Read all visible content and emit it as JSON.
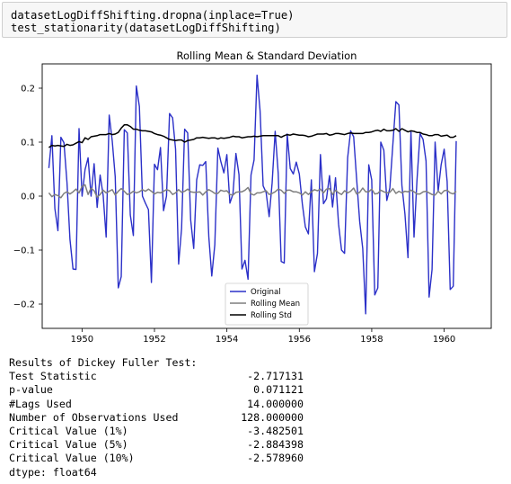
{
  "code_cell": {
    "lines": [
      "datasetLogDiffShifting.dropna(inplace=True)",
      "test_stationarity(datasetLogDiffShifting)"
    ]
  },
  "chart_data": {
    "type": "line",
    "title": "Rolling Mean & Standard Deviation",
    "xlabel": "",
    "ylabel": "",
    "xlim": [
      1948.9,
      1961.3
    ],
    "ylim": [
      -0.245,
      0.245
    ],
    "xticks": [
      1950,
      1952,
      1954,
      1956,
      1958,
      1960
    ],
    "yticks": [
      -0.2,
      -0.1,
      0.0,
      0.1,
      0.2
    ],
    "ytick_labels": [
      "−0.2",
      "−0.1",
      "0.0",
      "0.1",
      "0.2"
    ],
    "grid": false,
    "legend": "lower-center",
    "start": "1949-02",
    "frequency": "monthly",
    "series": [
      {
        "name": "Original",
        "color": "#2b30c8",
        "values": [
          0.052,
          0.112,
          -0.023,
          -0.064,
          0.109,
          0.099,
          0.025,
          -0.08,
          -0.135,
          -0.136,
          0.125,
          0.0,
          0.049,
          0.071,
          0.0,
          0.06,
          -0.021,
          0.039,
          0.001,
          -0.076,
          0.15,
          0.102,
          0.036,
          -0.17,
          -0.149,
          0.123,
          0.117,
          -0.035,
          -0.073,
          0.204,
          0.166,
          0.0,
          -0.013,
          -0.025,
          -0.16,
          0.059,
          0.049,
          0.09,
          -0.027,
          0.0,
          0.153,
          0.145,
          0.087,
          -0.126,
          -0.06,
          0.124,
          0.117,
          -0.044,
          -0.097,
          0.03,
          0.058,
          0.057,
          0.064,
          -0.075,
          -0.148,
          -0.09,
          0.089,
          0.064,
          0.043,
          0.077,
          -0.013,
          0.004,
          0.079,
          0.04,
          -0.135,
          -0.119,
          -0.154,
          0.039,
          0.067,
          0.224,
          0.158,
          0.019,
          0.007,
          -0.038,
          0.024,
          0.12,
          0.042,
          -0.121,
          -0.124,
          0.115,
          0.051,
          0.041,
          0.063,
          0.041,
          -0.015,
          -0.057,
          -0.07,
          0.03,
          -0.14,
          -0.106,
          0.077,
          -0.014,
          -0.005,
          0.038,
          -0.02,
          0.034,
          -0.052,
          -0.1,
          -0.106,
          0.071,
          0.121,
          0.11,
          0.032,
          -0.047,
          -0.097,
          -0.218,
          0.058,
          0.03,
          -0.183,
          -0.17,
          0.1,
          0.085,
          -0.008,
          0.015,
          0.097,
          0.175,
          0.169,
          0.02,
          -0.033,
          -0.114,
          0.12,
          -0.076,
          0.029,
          0.116,
          0.105,
          0.065,
          -0.187,
          -0.136,
          0.1,
          0.009,
          0.058,
          0.087,
          0.027,
          -0.173,
          -0.167,
          0.102
        ]
      },
      {
        "name": "Rolling Mean",
        "color": "#7f7f7f",
        "values": [
          0.006,
          -0.001,
          0.003,
          0.001,
          -0.003,
          0.005,
          0.008,
          0.004,
          0.008,
          0.013,
          0.006,
          0.018,
          0.021,
          0.003,
          0.015,
          0.01,
          -0.002,
          0.003,
          0.011,
          0.006,
          0.009,
          0.012,
          0.002,
          0.009,
          0.014,
          0.009,
          0.003,
          0.005,
          0.009,
          0.006,
          0.008,
          0.012,
          0.009,
          0.013,
          0.009,
          0.004,
          0.007,
          0.006,
          0.009,
          0.012,
          0.01,
          0.003,
          0.006,
          0.012,
          0.007,
          0.009,
          0.013,
          0.008,
          0.007,
          0.007,
          0.008,
          0.002,
          0.008,
          0.012,
          0.009,
          0.005,
          0.005,
          0.011,
          0.009,
          0.01,
          0.003,
          0.002,
          0.007,
          0.008,
          0.008,
          0.011,
          0.016,
          0.004,
          0.002,
          0.006,
          0.006,
          0.008,
          0.01,
          0.003,
          0.005,
          0.008,
          0.013,
          0.011,
          0.005,
          0.011,
          0.011,
          0.008,
          0.008,
          0.006,
          0.002,
          0.008,
          0.003,
          0.008,
          0.012,
          0.01,
          0.013,
          0.006,
          0.013,
          0.014,
          0.003,
          0.011,
          0.006,
          0.003,
          0.01,
          0.006,
          0.009,
          0.015,
          0.004,
          0.007,
          0.015,
          0.008,
          0.008,
          0.013,
          0.004,
          0.005,
          0.011,
          0.008,
          0.006,
          0.007,
          0.014,
          0.005,
          0.009,
          0.006,
          0.009,
          0.008,
          0.011,
          0.008,
          0.004,
          0.004,
          0.008,
          0.009,
          0.006,
          0.003,
          0.002,
          0.009,
          0.004,
          0.01,
          0.011,
          0.006,
          0.004,
          0.009
        ]
      },
      {
        "name": "Rolling Std",
        "color": "#000000",
        "values": [
          0.09,
          0.094,
          0.093,
          0.094,
          0.093,
          0.092,
          0.096,
          0.094,
          0.095,
          0.098,
          0.101,
          0.099,
          0.108,
          0.105,
          0.11,
          0.111,
          0.112,
          0.114,
          0.114,
          0.114,
          0.116,
          0.114,
          0.115,
          0.118,
          0.126,
          0.132,
          0.132,
          0.129,
          0.124,
          0.124,
          0.122,
          0.121,
          0.121,
          0.12,
          0.119,
          0.116,
          0.114,
          0.113,
          0.111,
          0.108,
          0.105,
          0.104,
          0.103,
          0.104,
          0.104,
          0.1,
          0.103,
          0.104,
          0.105,
          0.108,
          0.108,
          0.109,
          0.108,
          0.107,
          0.108,
          0.108,
          0.106,
          0.108,
          0.107,
          0.108,
          0.109,
          0.111,
          0.11,
          0.11,
          0.108,
          0.109,
          0.11,
          0.11,
          0.111,
          0.11,
          0.111,
          0.112,
          0.112,
          0.112,
          0.112,
          0.112,
          0.112,
          0.109,
          0.112,
          0.114,
          0.113,
          0.115,
          0.114,
          0.113,
          0.113,
          0.112,
          0.11,
          0.111,
          0.113,
          0.115,
          0.115,
          0.115,
          0.116,
          0.113,
          0.114,
          0.116,
          0.116,
          0.115,
          0.114,
          0.116,
          0.117,
          0.116,
          0.116,
          0.116,
          0.116,
          0.118,
          0.118,
          0.119,
          0.121,
          0.122,
          0.12,
          0.124,
          0.121,
          0.121,
          0.122,
          0.125,
          0.12,
          0.125,
          0.122,
          0.119,
          0.121,
          0.12,
          0.118,
          0.118,
          0.115,
          0.114,
          0.112,
          0.112,
          0.114,
          0.114,
          0.111,
          0.112,
          0.113,
          0.109,
          0.109,
          0.112
        ]
      }
    ]
  },
  "results": {
    "heading": "Results of Dickey Fuller Test:",
    "rows": [
      {
        "label": "Test Statistic",
        "value": "-2.717131"
      },
      {
        "label": "p-value",
        "value": "0.071121"
      },
      {
        "label": "#Lags Used",
        "value": "14.000000"
      },
      {
        "label": "Number of Observations Used",
        "value": "128.000000"
      },
      {
        "label": "Critical Value (1%)",
        "value": "-3.482501"
      },
      {
        "label": "Critical Value (5%)",
        "value": "-2.884398"
      },
      {
        "label": "Critical Value (10%)",
        "value": "-2.578960"
      }
    ],
    "dtype": "dtype: float64"
  }
}
